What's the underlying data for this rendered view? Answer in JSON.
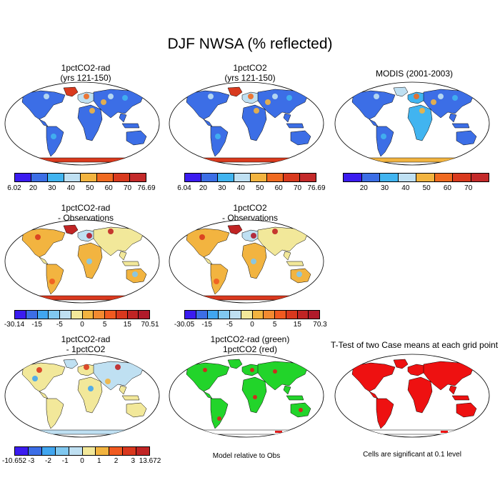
{
  "figure": {
    "title": "DJF NWSA (% reflected)",
    "panels": [
      {
        "id": "p1",
        "title_line1": "1pctCO2-rad",
        "title_line2": "(yrs 121-150)",
        "kind": "abs",
        "scheme": "abs"
      },
      {
        "id": "p2",
        "title_line1": "1pctCO2",
        "title_line2": "(yrs 121-150)",
        "kind": "abs",
        "scheme": "abs"
      },
      {
        "id": "p3",
        "title_line1": "MODIS (2001-2003)",
        "title_line2": "",
        "kind": "abs",
        "scheme": "abs"
      },
      {
        "id": "p4",
        "title_line1": "1pctCO2-rad",
        "title_line2": "- Observations",
        "kind": "diff",
        "scheme": "diff"
      },
      {
        "id": "p5",
        "title_line1": "1pctCO2",
        "title_line2": "- Observations",
        "kind": "diff",
        "scheme": "diff"
      },
      {
        "id": "p7",
        "title_line1": "1pctCO2-rad",
        "title_line2": "- 1pctCO2",
        "kind": "diff",
        "scheme": "diff2"
      },
      {
        "id": "p8",
        "title_line1": "1pctCO2-rad (green)",
        "title_line2": "1pctCO2 (red)",
        "kind": "compare",
        "scheme": "compare"
      },
      {
        "id": "p9",
        "title_line1": "T-Test of two Case means at each grid point",
        "title_line2": "",
        "kind": "ttest",
        "scheme": "ttest"
      }
    ],
    "colorbars": {
      "cb1": {
        "labels": [
          "6.02",
          "20",
          "30",
          "40",
          "50",
          "60",
          "70",
          "76.69"
        ]
      },
      "cb2": {
        "labels": [
          "6.04",
          "20",
          "30",
          "40",
          "50",
          "60",
          "70",
          "76.69"
        ]
      },
      "cb3": {
        "labels": [
          "",
          "20",
          "30",
          "40",
          "50",
          "60",
          "70",
          ""
        ]
      },
      "cb4": {
        "labels": [
          "-30.14",
          "-15",
          "-5",
          "0",
          "5",
          "15",
          "70.51"
        ]
      },
      "cb5": {
        "labels": [
          "-30.05",
          "-15",
          "-5",
          "0",
          "5",
          "15",
          "70.3"
        ]
      },
      "cb7": {
        "labels": [
          "-10.652",
          "-3",
          "-2",
          "-1",
          "0",
          "1",
          "2",
          "3",
          "13.672"
        ]
      }
    },
    "colors": {
      "abs": [
        "#3b1cf0",
        "#3c6ee6",
        "#41b4f0",
        "#bfe0f2",
        "#f2b440",
        "#f06a20",
        "#d93a1e",
        "#c42a2a"
      ],
      "diff": [
        "#3b1cf0",
        "#3c6ee6",
        "#41a6f0",
        "#80c8f0",
        "#bfe0f2",
        "#f2e89a",
        "#f2b440",
        "#f28a30",
        "#f05a20",
        "#d9381e",
        "#c02424",
        "#b01a2a"
      ],
      "diff2": [
        "#3b1cf0",
        "#3c6ee6",
        "#41a6f0",
        "#80c8f0",
        "#bfe0f2",
        "#f2e89a",
        "#f2b440",
        "#f05a20",
        "#d9381e",
        "#c02424"
      ],
      "compare_green": "#22d42a",
      "compare_red": "#e01c1c",
      "ttest_red": "#ee1111"
    },
    "notes": {
      "n8": "Model relative to Obs",
      "n9": "Cells are significant at 0.1 level"
    }
  }
}
